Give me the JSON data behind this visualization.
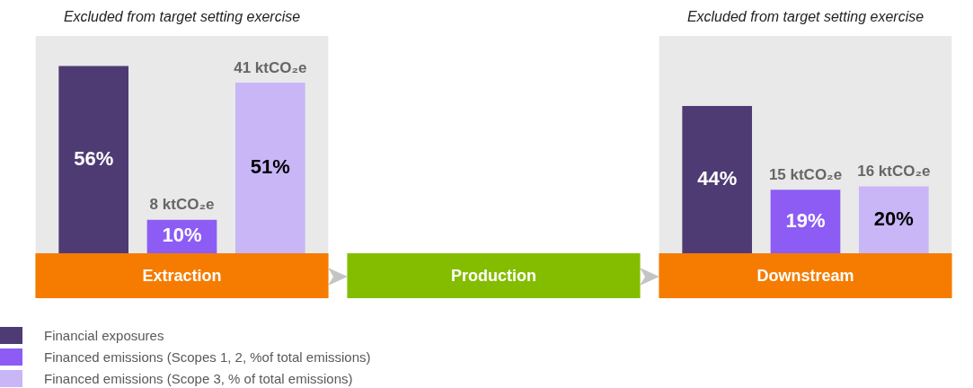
{
  "chart_data": {
    "type": "bar",
    "categories": [
      "Extraction",
      "Production",
      "Downstream"
    ],
    "series": [
      {
        "name": "Financial exposures",
        "color": "#4f3b73",
        "values": [
          56,
          null,
          44
        ],
        "value_labels": [
          "56%",
          null,
          "44%"
        ]
      },
      {
        "name": "Financed emissions (Scopes 1, 2, %of total emissions)",
        "color": "#8c5cf5",
        "values": [
          10,
          null,
          19
        ],
        "value_labels": [
          "10%",
          null,
          "19%"
        ]
      },
      {
        "name": "Financed emissions (Scope 3, % of total emissions)",
        "color": "#c9b6f7",
        "values": [
          51,
          null,
          20
        ],
        "value_labels": [
          "51%",
          null,
          "20%"
        ]
      }
    ],
    "bands": [
      {
        "axis": "x",
        "from": "Extraction",
        "to": "Extraction",
        "label": "Excluded from target setting exercise",
        "color": "#e9e9e9"
      },
      {
        "axis": "x",
        "from": "Downstream",
        "to": "Downstream",
        "label": "Excluded from target setting exercise",
        "color": "#e9e9e9"
      }
    ],
    "annotations": [
      "8 ktCO₂e",
      "41 ktCO₂e",
      "15 ktCO₂e",
      "16 ktCO₂e"
    ],
    "legend": "bottom left"
  }
}
